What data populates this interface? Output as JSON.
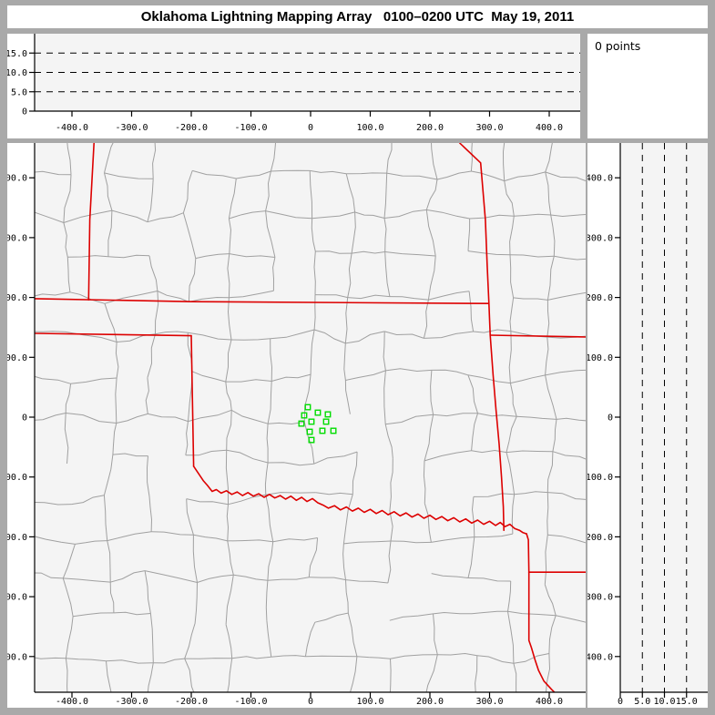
{
  "window": {
    "title": "Oklahoma Lightning Mapping Array   0100–0200 UTC  May 19, 2011"
  },
  "points_panel": {
    "label": "0 points"
  },
  "colors": {
    "window_bg": "#a9a9a9",
    "panel_bg": "#ffffff",
    "plot_bg": "#f4f4f4",
    "axis": "#000000",
    "dash": "#000000",
    "county_line": "#a0a0a0",
    "state_line": "#dd0000",
    "station": "#00dd00"
  },
  "chart_data": [
    {
      "id": "altitude_vs_east_west",
      "type": "scatter",
      "position": "top",
      "x_axis": {
        "ticks": [
          -400,
          -300,
          -200,
          -100,
          0,
          100,
          200,
          300,
          400
        ],
        "tick_labels": [
          "-400.0",
          "-300.0",
          "-200.0",
          "-100.0",
          "0",
          "100.0",
          "200.0",
          "300.0",
          "400.0"
        ],
        "lim": [
          -462,
          452
        ]
      },
      "y_axis": {
        "ticks": [
          0,
          5,
          10,
          15
        ],
        "tick_labels": [
          "0",
          "5.0",
          "10.0",
          "15.0"
        ],
        "lim": [
          0,
          20
        ]
      },
      "dashed_gridlines_y": [
        5,
        10,
        15
      ],
      "points": []
    },
    {
      "id": "plan_view_map",
      "type": "scatter",
      "position": "main",
      "x_axis": {
        "ticks": [
          -400,
          -300,
          -200,
          -100,
          0,
          100,
          200,
          300,
          400
        ],
        "tick_labels": [
          "-400.0",
          "-300.0",
          "-200.0",
          "-100.0",
          "0",
          "100.0",
          "200.0",
          "300.0",
          "400.0"
        ],
        "lim": [
          -462,
          461
        ]
      },
      "y_axis": {
        "ticks": [
          400,
          300,
          200,
          100,
          0,
          -100,
          -200,
          -300,
          -400
        ],
        "tick_labels": [
          "400.0",
          "300.0",
          "200.0",
          "100.0",
          "0",
          "-100.0",
          "-200.0",
          "-300.0",
          "-400.0"
        ],
        "lim": [
          -460,
          458
        ]
      },
      "stations_km": [
        [
          -4.6,
          16.7
        ],
        [
          12.2,
          7.6
        ],
        [
          29.0,
          4.6
        ],
        [
          -10.7,
          3.0
        ],
        [
          1.5,
          -7.6
        ],
        [
          26.0,
          -7.6
        ],
        [
          -15.3,
          -10.7
        ],
        [
          -1.5,
          -24.4
        ],
        [
          19.8,
          -22.8
        ],
        [
          38.2,
          -22.8
        ],
        [
          1.5,
          -38.1
        ]
      ],
      "state_boundaries_km": [
        [
          [
            -363,
            458
          ],
          [
            -370,
            330
          ],
          [
            -372,
            196
          ]
        ],
        [
          [
            -462,
            198
          ],
          [
            -200,
            193
          ],
          [
            298,
            190
          ]
        ],
        [
          [
            -462,
            140
          ],
          [
            -200,
            136
          ]
        ],
        [
          [
            -200,
            136
          ],
          [
            -196,
            -82
          ]
        ],
        [
          [
            250,
            458
          ],
          [
            285,
            425
          ],
          [
            293,
            330
          ],
          [
            296,
            253
          ],
          [
            299,
            190
          ],
          [
            301,
            137
          ],
          [
            306,
            70
          ],
          [
            311,
            10
          ],
          [
            316,
            -45
          ],
          [
            320,
            -100
          ],
          [
            323,
            -150
          ],
          [
            324,
            -189
          ]
        ],
        [
          [
            301,
            137
          ],
          [
            462,
            134
          ]
        ],
        [
          [
            -196,
            -82
          ],
          [
            -188,
            -94
          ],
          [
            -180,
            -106
          ],
          [
            -173,
            -114
          ],
          [
            -165,
            -124
          ],
          [
            -158,
            -121
          ],
          [
            -150,
            -127
          ],
          [
            -141,
            -123
          ],
          [
            -132,
            -129
          ],
          [
            -123,
            -125
          ],
          [
            -114,
            -131
          ],
          [
            -105,
            -126
          ],
          [
            -96,
            -132
          ],
          [
            -87,
            -128
          ],
          [
            -78,
            -134
          ],
          [
            -69,
            -129
          ],
          [
            -60,
            -135
          ],
          [
            -51,
            -131
          ],
          [
            -42,
            -137
          ],
          [
            -33,
            -132
          ],
          [
            -24,
            -139
          ],
          [
            -15,
            -134
          ],
          [
            -6,
            -141
          ],
          [
            3,
            -136
          ],
          [
            12,
            -143
          ],
          [
            21,
            -147
          ],
          [
            30,
            -152
          ],
          [
            40,
            -148
          ],
          [
            50,
            -155
          ],
          [
            60,
            -150
          ],
          [
            70,
            -157
          ],
          [
            80,
            -152
          ],
          [
            90,
            -159
          ],
          [
            100,
            -154
          ],
          [
            110,
            -161
          ],
          [
            120,
            -156
          ],
          [
            130,
            -163
          ],
          [
            140,
            -158
          ],
          [
            150,
            -165
          ],
          [
            160,
            -160
          ],
          [
            170,
            -167
          ],
          [
            180,
            -162
          ],
          [
            190,
            -169
          ],
          [
            200,
            -164
          ],
          [
            210,
            -171
          ],
          [
            220,
            -166
          ],
          [
            230,
            -173
          ],
          [
            240,
            -168
          ],
          [
            250,
            -175
          ],
          [
            260,
            -170
          ],
          [
            270,
            -177
          ],
          [
            280,
            -172
          ],
          [
            290,
            -179
          ],
          [
            300,
            -174
          ],
          [
            310,
            -181
          ],
          [
            318,
            -176
          ],
          [
            326,
            -183
          ],
          [
            334,
            -179
          ],
          [
            342,
            -186
          ],
          [
            350,
            -189
          ],
          [
            356,
            -193
          ],
          [
            362,
            -195
          ]
        ],
        [
          [
            362,
            -195
          ],
          [
            365,
            -205
          ],
          [
            366,
            -259
          ],
          [
            366,
            -373
          ],
          [
            370,
            -385
          ],
          [
            376,
            -405
          ],
          [
            382,
            -423
          ],
          [
            391,
            -441
          ],
          [
            404,
            -455
          ],
          [
            411,
            -462
          ]
        ],
        [
          [
            366,
            -259
          ],
          [
            462,
            -259
          ]
        ]
      ],
      "county_grid": {
        "seed": 42,
        "nodes": 15,
        "jitter_km": 12,
        "keep_prob": 0.85,
        "wiggle_km": 3
      },
      "points": []
    },
    {
      "id": "altitude_vs_north_south",
      "type": "scatter",
      "position": "right",
      "x_axis": {
        "ticks": [
          0,
          5,
          10,
          15
        ],
        "tick_labels": [
          "0",
          "5.0",
          "10.0",
          "15.0"
        ],
        "lim": [
          0,
          20
        ]
      },
      "y_axis": {
        "ticks": [
          400,
          300,
          200,
          100,
          0,
          -100,
          -200,
          -300,
          -400
        ],
        "tick_labels": [
          "400.0",
          "300.0",
          "200.0",
          "100.0",
          "0",
          "-100.0",
          "-200.0",
          "-300.0",
          "-400.0"
        ],
        "lim": [
          -460,
          458
        ]
      },
      "dashed_gridlines_x": [
        5,
        10,
        15
      ],
      "points": []
    }
  ]
}
